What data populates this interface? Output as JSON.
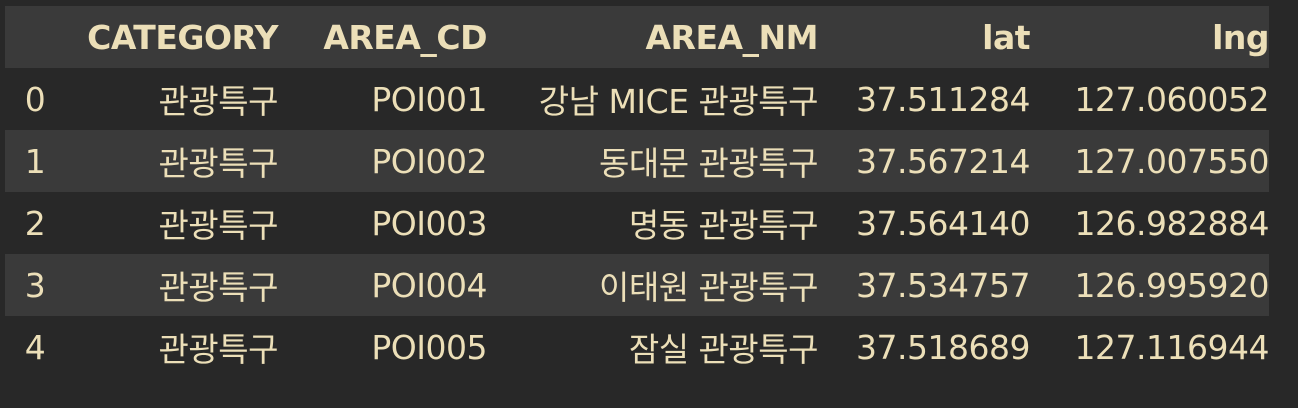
{
  "columns": [
    "",
    "CATEGORY",
    "AREA_CD",
    "AREA_NM",
    "lat",
    "lng"
  ],
  "rows": [
    {
      "index": "0",
      "category": "관광특구",
      "area_cd": "POI001",
      "area_nm": "강남 MICE 관광특구",
      "lat": "37.511284",
      "lng": "127.060052"
    },
    {
      "index": "1",
      "category": "관광특구",
      "area_cd": "POI002",
      "area_nm": "동대문 관광특구",
      "lat": "37.567214",
      "lng": "127.007550"
    },
    {
      "index": "2",
      "category": "관광특구",
      "area_cd": "POI003",
      "area_nm": "명동 관광특구",
      "lat": "37.564140",
      "lng": "126.982884"
    },
    {
      "index": "3",
      "category": "관광특구",
      "area_cd": "POI004",
      "area_nm": "이태원 관광특구",
      "lat": "37.534757",
      "lng": "126.995920"
    },
    {
      "index": "4",
      "category": "관광특구",
      "area_cd": "POI005",
      "area_nm": "잠실 관광특구",
      "lat": "37.518689",
      "lng": "127.116944"
    }
  ],
  "colors": {
    "background": "#282828",
    "row_stripe": "#3a3a3a",
    "text": "#ecdfb8"
  }
}
